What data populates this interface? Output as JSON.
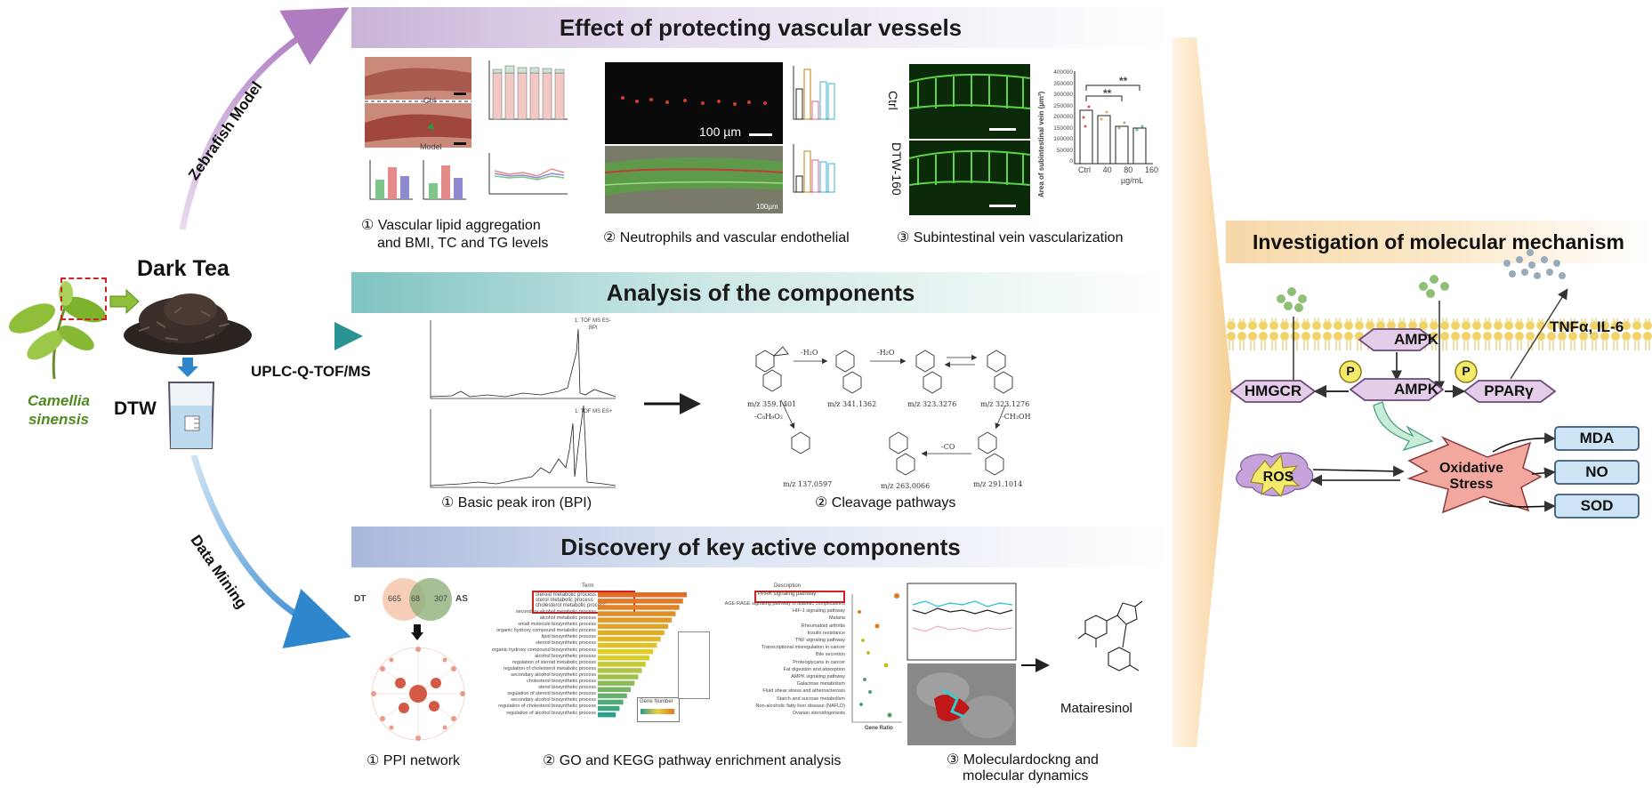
{
  "banners": {
    "vascular": "Effect of protecting vascular vessels",
    "components": "Analysis of the components",
    "discovery": "Discovery of key active components",
    "mechanism": "Investigation of molecular mechanism"
  },
  "left": {
    "dark_tea": "Dark Tea",
    "plant_line1": "Camellia",
    "plant_line2": "sinensis",
    "dtw": "DTW",
    "zebrafish": "Zebrafish Model",
    "uplc": "UPLC-Q-TOF/MS",
    "data_mining": "Data Mining"
  },
  "captions": {
    "vascular_1_line1": "① Vascular lipid aggregation",
    "vascular_1_line2": "and BMI, TC and TG levels",
    "vascular_2": "② Neutrophils and vascular endothelial",
    "vascular_3": "③ Subintestinal vein vascularization",
    "components_1": "① Basic peak iron (BPI)",
    "components_2": "② Cleavage pathways",
    "discovery_1": "① PPI network",
    "discovery_2": "② GO and KEGG pathway enrichment analysis",
    "discovery_3_line1": "③ Moleculardockng and",
    "discovery_3_line2": "molecular dynamics"
  },
  "panel_text": {
    "ctrl_small": "Ctrl",
    "model_small": "Model",
    "scale_100um": "100 µm",
    "scale_100um_2": "100µm",
    "ctrl": "Ctrl",
    "dtw160": "DTW-160",
    "svv_ylabel": "Area of subintestinal vein (µm²)",
    "svv_x": [
      "Ctrl",
      "40",
      "80",
      "160"
    ],
    "svv_unit": "µg/mL",
    "svv_sig1": "**",
    "svv_sig2": "**",
    "svv_yticks": [
      "400000",
      "350000",
      "300000",
      "250000",
      "200000",
      "150000",
      "100000",
      "50000",
      "0"
    ],
    "venn_dt": "DT",
    "venn_as": "AS",
    "venn_left": "665",
    "venn_mid": "68",
    "venn_right": "307",
    "mataireisnol": "Matairesinol",
    "gene_number": "Gene Number",
    "go_header": "Term",
    "kegg_header": "Description",
    "go_top1": "steroid metabolic process",
    "go_top2": "sterol metabolic process",
    "go_top3": "cholesterol metabolic process",
    "kegg_top": "PPAR signaling pathway",
    "gene_ratio": "Gene Ratio",
    "kegg_items": [
      "AGE-RAGE signaling pathway in diabetic complications",
      "HIF-1 signaling pathway",
      "Malaria",
      "Rheumatoid arthritis",
      "Insulin resistance",
      "TNF signaling pathway",
      "Transcriptional misregulation in cancer",
      "Bile secretion",
      "Proteoglycans in cancer",
      "Fat digestion and absorption",
      "AMPK signaling pathway",
      "Galactose metabolism",
      "Fluid shear stress and atherosclerosis",
      "Starch and sucrose metabolism",
      "Non-alcoholic fatty liver disease (NAFLD)",
      "Ovarian steroidogenesis"
    ],
    "go_items": [
      "secondary alcohol metabolic process",
      "alcohol metabolic process",
      "small molecule biosynthetic process",
      "organic hydroxy compound metabolic process",
      "lipid biosynthetic process",
      "steroid biosynthetic process",
      "organic hydroxy compound biosynthetic process",
      "alcohol biosynthetic process",
      "regulation of steroid metabolic process",
      "regulation of cholesterol metabolic process",
      "secondary alcohol biosynthetic process",
      "cholesterol biosynthetic process",
      "sterol biosynthetic process",
      "regulation of steroid biosynthetic process",
      "secondary alcohol biosynthetic process",
      "regulation of cholesterol biosynthetic process",
      "regulation of alcohol biosynthetic process"
    ],
    "mz_1": "m/z 359.1401",
    "mz_2": "m/z 341.1362",
    "mz_3": "m/z 323.3276",
    "mz_4": "m/z 323.1276",
    "mz_5": "m/z 137.0597",
    "mz_6": "m/z 263.0066",
    "mz_7": "m/z 291.1014",
    "loss_h2o_1": "-H₂O",
    "loss_h2o_2": "-H₂O",
    "loss_c8h9o2": "-C₈H₉O₂",
    "loss_co": "-CO",
    "loss_ch3oh": "-CH₃OH",
    "bpi_label_1": "1: TOF MS ES-",
    "bpi_label_2": "1: TOF MS ES+",
    "bpi": "BPI"
  },
  "mechanism": {
    "tnf": "TNFα, IL-6",
    "ampk_top": "AMPK",
    "ampk_mid": "AMPK",
    "hmgcr": "HMGCR",
    "ppar": "PPARγ",
    "p1": "P",
    "p2": "P",
    "ros": "ROS",
    "ox_line1": "Oxidative",
    "ox_line2": "Stress",
    "mda": "MDA",
    "no": "NO",
    "sod": "SOD"
  },
  "colors": {
    "purple_arrow": "#b88cc2",
    "teal_arrow": "#2f9b9b",
    "blue_arrow": "#3a8fd0",
    "hex_fill": "#e4cde8",
    "hex_stroke": "#6a4a7a",
    "box_fill": "#cde4f5",
    "star_fill": "#f2a79f",
    "ros_fill": "#f4ea6c"
  }
}
